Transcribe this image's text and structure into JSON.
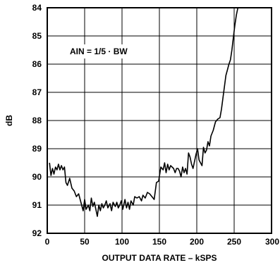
{
  "chart_data": {
    "type": "line",
    "title": "",
    "xlabel": "OUTPUT DATA RATE – kSPS",
    "ylabel": "dB",
    "xlim": [
      0,
      300
    ],
    "ylim": [
      84,
      92
    ],
    "y_inverted": true,
    "grid": true,
    "x_ticks": [
      0,
      50,
      100,
      150,
      200,
      250,
      300
    ],
    "y_ticks": [
      84,
      85,
      86,
      87,
      88,
      89,
      90,
      91,
      92
    ],
    "annotation": "AIN = 1/5 · BW",
    "series": [
      {
        "color": "#000000",
        "points": [
          [
            3,
            89.5
          ],
          [
            5,
            89.95
          ],
          [
            7,
            89.7
          ],
          [
            9,
            89.9
          ],
          [
            11,
            89.65
          ],
          [
            13,
            89.75
          ],
          [
            15,
            89.55
          ],
          [
            17,
            89.75
          ],
          [
            19,
            89.6
          ],
          [
            21,
            89.75
          ],
          [
            23,
            89.65
          ],
          [
            25,
            90.2
          ],
          [
            27,
            90.3
          ],
          [
            30,
            90.05
          ],
          [
            33,
            90.4
          ],
          [
            36,
            90.5
          ],
          [
            39,
            90.7
          ],
          [
            42,
            90.6
          ],
          [
            45,
            90.9
          ],
          [
            48,
            91.2
          ],
          [
            50,
            90.8
          ],
          [
            52,
            91.15
          ],
          [
            55,
            91.0
          ],
          [
            57,
            91.2
          ],
          [
            59,
            90.75
          ],
          [
            61,
            91.05
          ],
          [
            63,
            90.9
          ],
          [
            65,
            91.15
          ],
          [
            67,
            91.4
          ],
          [
            69,
            91.0
          ],
          [
            71,
            91.2
          ],
          [
            73,
            90.95
          ],
          [
            75,
            91.1
          ],
          [
            77,
            91.0
          ],
          [
            79,
            90.85
          ],
          [
            81,
            91.1
          ],
          [
            84,
            90.95
          ],
          [
            86,
            91.2
          ],
          [
            88,
            90.9
          ],
          [
            91,
            91.05
          ],
          [
            93,
            90.9
          ],
          [
            95,
            91.1
          ],
          [
            97,
            91.0
          ],
          [
            99,
            90.85
          ],
          [
            101,
            91.15
          ],
          [
            104,
            90.8
          ],
          [
            106,
            91.1
          ],
          [
            108,
            90.9
          ],
          [
            110,
            91.15
          ],
          [
            112,
            90.85
          ],
          [
            115,
            91.0
          ],
          [
            117,
            90.7
          ],
          [
            120,
            90.75
          ],
          [
            123,
            90.7
          ],
          [
            126,
            90.85
          ],
          [
            128,
            90.65
          ],
          [
            131,
            90.75
          ],
          [
            134,
            90.55
          ],
          [
            137,
            90.6
          ],
          [
            140,
            90.7
          ],
          [
            143,
            90.8
          ],
          [
            146,
            90.2
          ],
          [
            149,
            90.15
          ],
          [
            152,
            89.65
          ],
          [
            155,
            89.75
          ],
          [
            157,
            89.5
          ],
          [
            159,
            89.85
          ],
          [
            161,
            89.55
          ],
          [
            163,
            89.75
          ],
          [
            165,
            89.6
          ],
          [
            167,
            89.65
          ],
          [
            169,
            89.7
          ],
          [
            171,
            89.85
          ],
          [
            173,
            89.7
          ],
          [
            175,
            89.7
          ],
          [
            177,
            89.8
          ],
          [
            179,
            90.0
          ],
          [
            181,
            89.65
          ],
          [
            183,
            89.85
          ],
          [
            185,
            89.7
          ],
          [
            187,
            89.9
          ],
          [
            189,
            89.15
          ],
          [
            191,
            89.3
          ],
          [
            193,
            89.55
          ],
          [
            195,
            89.7
          ],
          [
            197,
            89.45
          ],
          [
            199,
            89.2
          ],
          [
            201,
            89.0
          ],
          [
            203,
            89.4
          ],
          [
            205,
            89.5
          ],
          [
            207,
            89.6
          ],
          [
            209,
            88.95
          ],
          [
            211,
            89.15
          ],
          [
            213,
            89.05
          ],
          [
            215,
            88.75
          ],
          [
            217,
            88.9
          ],
          [
            219,
            88.55
          ],
          [
            222,
            88.35
          ],
          [
            225,
            88.05
          ],
          [
            228,
            87.95
          ],
          [
            231,
            87.9
          ],
          [
            233,
            87.6
          ],
          [
            235,
            87.2
          ],
          [
            237,
            86.8
          ],
          [
            239,
            86.4
          ],
          [
            241,
            86.2
          ],
          [
            243,
            86.0
          ],
          [
            245,
            85.85
          ],
          [
            247,
            85.5
          ],
          [
            249,
            85.05
          ],
          [
            251,
            84.6
          ],
          [
            253,
            84.25
          ],
          [
            255,
            84.0
          ]
        ]
      }
    ]
  }
}
